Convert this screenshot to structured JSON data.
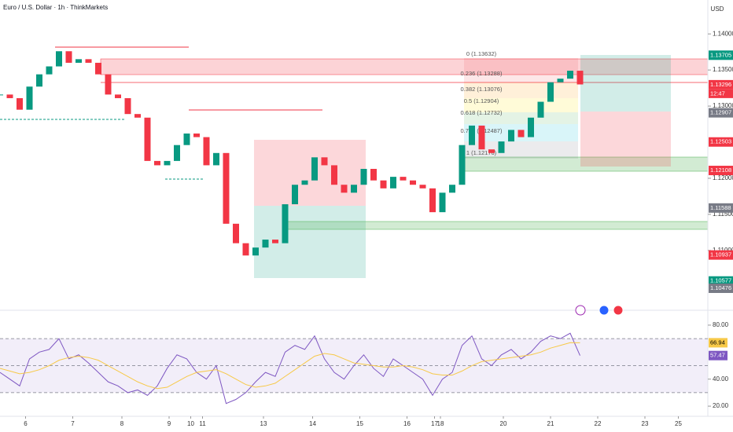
{
  "header": {
    "title": "Euro / U.S. Dollar · 1h · ThinkMarkets",
    "currency": "USD",
    "countdown": "12:47"
  },
  "fib_labels": [
    "0 (1.13632)",
    "0.236 (1.13288)",
    "0.382 (1.13076)",
    "0.5 (1.12904)",
    "0.618 (1.12732)",
    "0.786 (1.12487)",
    "1 (1.12176)"
  ],
  "chart_data": [
    {
      "type": "candlestick",
      "up_color": "#089981",
      "down_color": "#f23645",
      "xlim": [
        0,
        360
      ],
      "ylim": [
        1.1028,
        1.1447
      ],
      "xticks": [
        {
          "value": 13,
          "label": "6"
        },
        {
          "value": 37,
          "label": "7"
        },
        {
          "value": 62,
          "label": "8"
        },
        {
          "value": 86,
          "label": "9"
        },
        {
          "value": 97,
          "label": "10"
        },
        {
          "value": 103,
          "label": "11"
        },
        {
          "value": 134,
          "label": "13"
        },
        {
          "value": 159,
          "label": "14"
        },
        {
          "value": 183,
          "label": "15"
        },
        {
          "value": 207,
          "label": "16"
        },
        {
          "value": 221,
          "label": "17"
        },
        {
          "value": 224,
          "label": "18"
        },
        {
          "value": 256,
          "label": "20"
        },
        {
          "value": 280,
          "label": "21"
        },
        {
          "value": 304,
          "label": "22"
        },
        {
          "value": 328,
          "label": "23"
        },
        {
          "value": 345,
          "label": "25"
        }
      ],
      "yticks": [
        {
          "value": 1.14,
          "label": "1.14000"
        },
        {
          "value": 1.135,
          "label": "1.13500"
        },
        {
          "value": 1.13,
          "label": "1.13000"
        },
        {
          "value": 1.12,
          "label": "1.12000"
        },
        {
          "value": 1.115,
          "label": "1.11500"
        },
        {
          "value": 1.11,
          "label": "1.11000"
        }
      ],
      "price_labels": [
        {
          "value": 1.13705,
          "color": "#089981"
        },
        {
          "value": 1.13296,
          "color": "#f23645"
        },
        {
          "value": 1.12907,
          "color": "#787b86"
        },
        {
          "value": 1.12503,
          "color": "#f23645"
        },
        {
          "value": 1.12108,
          "color": "#f23645"
        },
        {
          "value": 1.11588,
          "color": "#787b86"
        },
        {
          "value": 1.10937,
          "color": "#f23645"
        },
        {
          "value": 1.10577,
          "color": "#089981"
        },
        {
          "value": 1.10476,
          "color": "#787b86"
        }
      ],
      "x": [
        0,
        5,
        10,
        15,
        20,
        25,
        30,
        35,
        40,
        45,
        50,
        55,
        60,
        65,
        70,
        75,
        80,
        85,
        90,
        95,
        100,
        105,
        110,
        115,
        120,
        125,
        130,
        135,
        140,
        145,
        150,
        155,
        160,
        165,
        170,
        175,
        180,
        185,
        190,
        195,
        200,
        205,
        210,
        215,
        220,
        225,
        230,
        235,
        240,
        245,
        250,
        255,
        260,
        265,
        270,
        275,
        280,
        285,
        290,
        295
      ],
      "values": [
        1.1316,
        1.1311,
        1.1295,
        1.1327,
        1.1344,
        1.1355,
        1.1376,
        1.136,
        1.1365,
        1.136,
        1.1344,
        1.1316,
        1.1311,
        1.1289,
        1.1284,
        1.1224,
        1.1218,
        1.1224,
        1.1246,
        1.1262,
        1.1257,
        1.1218,
        1.1235,
        1.1137,
        1.111,
        1.1093,
        1.1104,
        1.1115,
        1.111,
        1.1164,
        1.1191,
        1.1197,
        1.1229,
        1.1218,
        1.1191,
        1.118,
        1.1191,
        1.1213,
        1.1197,
        1.1186,
        1.1202,
        1.1197,
        1.1191,
        1.1186,
        1.1153,
        1.118,
        1.1191,
        1.1246,
        1.1273,
        1.124,
        1.1235,
        1.1251,
        1.1267,
        1.1257,
        1.1284,
        1.1306,
        1.1333,
        1.1338,
        1.1349,
        1.133
      ]
    },
    {
      "type": "line",
      "xlim": [
        0,
        360
      ],
      "ylim": [
        15.4,
        85.2
      ],
      "yticks": [
        {
          "value": 80,
          "label": "80.00"
        },
        {
          "value": 40,
          "label": "40.00"
        },
        {
          "value": 20,
          "label": "20.00"
        }
      ],
      "bands": [
        70,
        50,
        30
      ],
      "x": [
        0,
        5,
        10,
        15,
        20,
        25,
        30,
        35,
        40,
        45,
        50,
        55,
        60,
        65,
        70,
        75,
        80,
        85,
        90,
        95,
        100,
        105,
        110,
        115,
        120,
        125,
        130,
        135,
        140,
        145,
        150,
        155,
        160,
        165,
        170,
        175,
        180,
        185,
        190,
        195,
        200,
        205,
        210,
        215,
        220,
        225,
        230,
        235,
        240,
        245,
        250,
        255,
        260,
        265,
        270,
        275,
        280,
        285,
        290,
        295
      ],
      "series": [
        {
          "color": "#7e57c2",
          "values": [
            45,
            40,
            35,
            55,
            60,
            62,
            70,
            55,
            58,
            52,
            45,
            38,
            35,
            30,
            32,
            28,
            35,
            48,
            58,
            55,
            45,
            40,
            50,
            22,
            25,
            30,
            38,
            45,
            42,
            60,
            65,
            62,
            72,
            55,
            45,
            40,
            50,
            58,
            48,
            42,
            55,
            50,
            45,
            40,
            28,
            40,
            45,
            65,
            72,
            55,
            50,
            58,
            62,
            55,
            60,
            68,
            72,
            70,
            74,
            57.47
          ]
        },
        {
          "color": "#f7c948",
          "values": [
            48,
            46,
            44,
            45,
            47,
            50,
            54,
            56,
            57,
            56,
            54,
            50,
            46,
            42,
            38,
            35,
            33,
            34,
            38,
            42,
            45,
            46,
            47,
            44,
            40,
            36,
            34,
            35,
            37,
            42,
            47,
            52,
            57,
            59,
            58,
            55,
            52,
            51,
            50,
            49,
            49,
            50,
            49,
            47,
            44,
            43,
            43,
            46,
            50,
            53,
            54,
            55,
            56,
            57,
            58,
            60,
            63,
            65,
            67,
            66.94
          ]
        }
      ]
    }
  ]
}
